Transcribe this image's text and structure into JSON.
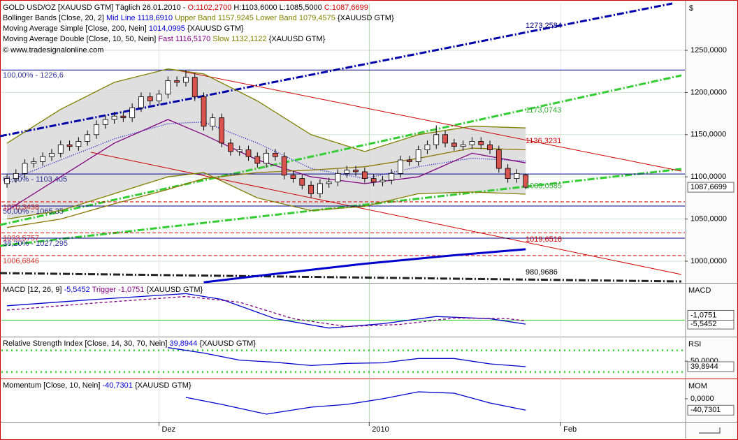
{
  "chart_data": [
    {
      "type": "candlestick",
      "title": "GOLD USD/OZ [XAUUSD GTM] Täglich 26.01.2010 -",
      "ohlc_labels": [
        "O:1102,2700",
        "H:1103,6000",
        "L:1085,5000",
        "C:1087,6699"
      ],
      "copyright": "© www.tradesignalonline.com",
      "currency": "$",
      "open": [
        1092,
        1098,
        1104,
        1116,
        1118,
        1124,
        1128,
        1138,
        1136,
        1142,
        1150,
        1162,
        1168,
        1172,
        1170,
        1182,
        1195,
        1190,
        1198,
        1214,
        1212,
        1218,
        1195,
        1160,
        1170,
        1140,
        1130,
        1132,
        1124,
        1116,
        1128,
        1124,
        1102,
        1098,
        1090,
        1080,
        1092,
        1094,
        1104,
        1108,
        1106,
        1098,
        1094,
        1096,
        1104,
        1120,
        1118,
        1132,
        1138,
        1150,
        1140,
        1136,
        1138,
        1142,
        1138,
        1132,
        1110,
        1098,
        1102.27
      ],
      "high": [
        1103,
        1109,
        1121,
        1123,
        1129,
        1133,
        1143,
        1143,
        1147,
        1155,
        1167,
        1173,
        1177,
        1177,
        1187,
        1200,
        1200,
        1203,
        1219,
        1219,
        1226,
        1223,
        1200,
        1175,
        1175,
        1145,
        1137,
        1137,
        1129,
        1133,
        1133,
        1129,
        1107,
        1103,
        1095,
        1097,
        1099,
        1109,
        1113,
        1113,
        1111,
        1103,
        1101,
        1109,
        1125,
        1125,
        1137,
        1143,
        1161,
        1155,
        1145,
        1143,
        1147,
        1147,
        1143,
        1137,
        1115,
        1109,
        1103.6
      ],
      "low": [
        1087,
        1093,
        1099,
        1111,
        1113,
        1119,
        1123,
        1131,
        1131,
        1137,
        1145,
        1157,
        1163,
        1165,
        1165,
        1177,
        1185,
        1185,
        1193,
        1207,
        1207,
        1190,
        1155,
        1155,
        1135,
        1125,
        1125,
        1119,
        1111,
        1111,
        1119,
        1097,
        1093,
        1085,
        1075,
        1075,
        1087,
        1089,
        1099,
        1101,
        1093,
        1089,
        1089,
        1091,
        1099,
        1113,
        1113,
        1127,
        1133,
        1135,
        1131,
        1131,
        1133,
        1133,
        1127,
        1105,
        1093,
        1093,
        1085.5
      ],
      "close": [
        1098,
        1104,
        1116,
        1118,
        1124,
        1128,
        1138,
        1136,
        1142,
        1150,
        1162,
        1168,
        1172,
        1170,
        1182,
        1195,
        1190,
        1198,
        1214,
        1212,
        1218,
        1195,
        1160,
        1170,
        1140,
        1130,
        1132,
        1124,
        1116,
        1128,
        1124,
        1102,
        1098,
        1090,
        1080,
        1092,
        1094,
        1104,
        1108,
        1106,
        1098,
        1094,
        1096,
        1104,
        1120,
        1118,
        1132,
        1138,
        1150,
        1140,
        1136,
        1138,
        1142,
        1138,
        1132,
        1110,
        1098,
        1104,
        1087.6699
      ],
      "last_label": "1087,6699",
      "xlim": [
        -0.625,
        75.8
      ],
      "xticks": [
        {
          "value": 17,
          "label": "Dez"
        },
        {
          "value": 40.5,
          "label": "2010"
        },
        {
          "value": 61.9,
          "label": "Feb"
        }
      ],
      "ylim": [
        974.3,
        1305.5
      ],
      "yticks": [
        {
          "value": 1000,
          "label": "1000,0000"
        },
        {
          "value": 1050,
          "label": "1050,0000"
        },
        {
          "value": 1100,
          "label": "1100,0000"
        },
        {
          "value": 1150,
          "label": "1150,0000"
        },
        {
          "value": 1200,
          "label": "1200,0000"
        },
        {
          "value": 1250,
          "label": "1250,0000"
        }
      ],
      "indicators": [
        {
          "label": "Bollinger Bands [Close, 20, 2]",
          "source": "{XAUUSD GTM}",
          "series": [
            {
              "name": "Mid Line",
              "value_label": "1118,6910",
              "color": "#0000cc",
              "style": "dotted",
              "x": [
                0,
                6,
                12,
                18,
                22,
                28,
                34,
                40,
                46,
                52,
                58
              ],
              "values": [
                1095,
                1120,
                1145,
                1163,
                1165,
                1140,
                1110,
                1098,
                1112,
                1122,
                1118.691
              ]
            },
            {
              "name": "Upper Band",
              "value_label": "1157,9245",
              "color": "#808000",
              "style": "solid",
              "x": [
                0,
                6,
                12,
                18,
                22,
                28,
                34,
                40,
                46,
                52,
                58
              ],
              "values": [
                1140,
                1180,
                1212,
                1228,
                1222,
                1190,
                1150,
                1130,
                1150,
                1160,
                1157.9245
              ]
            },
            {
              "name": "Lower Band",
              "value_label": "1079,4575",
              "color": "#808000",
              "style": "solid",
              "x": [
                0,
                6,
                12,
                18,
                22,
                28,
                34,
                40,
                46,
                52,
                58
              ],
              "values": [
                1050,
                1060,
                1080,
                1100,
                1105,
                1075,
                1060,
                1065,
                1080,
                1082,
                1079.4575
              ]
            }
          ]
        },
        {
          "label": "Moving Average Simple [Close, 200, Nein]",
          "source": "{XAUUSD GTM}",
          "series": [
            {
              "value_label": "1014,0995",
              "color": "#0000cc",
              "style": "thick",
              "x": [
                22,
                30,
                40,
                50,
                58
              ],
              "values": [
                975,
                985,
                997,
                1007,
                1014.0995
              ]
            }
          ]
        },
        {
          "label": "Moving Average Double [Close, 10, 50, Nein]",
          "source": "{XAUUSD GTM}",
          "series": [
            {
              "name": "Fast",
              "value_label": "1116,5170",
              "color": "#800080",
              "style": "solid",
              "x": [
                0,
                6,
                12,
                18,
                22,
                28,
                34,
                40,
                46,
                52,
                58
              ],
              "values": [
                1060,
                1100,
                1140,
                1168,
                1150,
                1120,
                1100,
                1092,
                1100,
                1128,
                1116.517
              ]
            },
            {
              "name": "Slow",
              "value_label": "1132,1122",
              "color": "#8b7500",
              "style": "solid",
              "x": [
                0,
                6,
                12,
                18,
                22,
                28,
                34,
                40,
                46,
                52,
                58
              ],
              "values": [
                1040,
                1050,
                1068,
                1085,
                1098,
                1105,
                1108,
                1112,
                1122,
                1134,
                1132.1122
              ]
            }
          ]
        }
      ],
      "levels": [
        {
          "value": 1226.6,
          "label": "100,00% - 1226,6",
          "color": "#000080",
          "dashed": false
        },
        {
          "value": 1103.405,
          "label": "61,80% - 1103,405",
          "color": "#000080",
          "dashed": false
        },
        {
          "value": 1065.35,
          "label": "50,00% - 1065,35",
          "color": "#000080",
          "dashed": false
        },
        {
          "value": 1027.295,
          "label": "38,20% - 1027,295",
          "color": "#000080",
          "dashed": false
        },
        {
          "value": 1070.3438,
          "label": "1070,3438",
          "color": "#cc0000",
          "dashed": true
        },
        {
          "value": 1033.5757,
          "label": "1033,5757",
          "color": "#cc0000",
          "dashed": true
        },
        {
          "value": 1006.6846,
          "label": "1006,6846",
          "color": "#cc0000",
          "dashed": true
        }
      ],
      "price_labels": [
        {
          "value": 1273.2584,
          "label": "1273,2584",
          "color": "#000080"
        },
        {
          "value": 1173.0743,
          "label": "1173,0743",
          "color": "#33aa33"
        },
        {
          "value": 1136.3231,
          "label": "1136,3231",
          "color": "#cc0000"
        },
        {
          "value": 1083.0585,
          "label": "1083,0585",
          "color": "#33aa33"
        },
        {
          "value": 1019.6516,
          "label": "1019,6516",
          "color": "#cc0000"
        },
        {
          "value": 980.9686,
          "label": "980,9686",
          "color": "#000000"
        }
      ]
    },
    {
      "type": "line",
      "title": "MACD [12, 26, 9]",
      "source": "{XAUUSD GTM}",
      "axis_label": "MACD",
      "ylim": [
        -23,
        50
      ],
      "levels": [
        0
      ],
      "series": [
        {
          "value_label": "-5,5452",
          "color": "#0000cc",
          "style": "solid",
          "x": [
            0,
            10,
            20,
            24,
            30,
            36,
            42,
            48,
            54,
            58
          ],
          "values": [
            20,
            29,
            37,
            29,
            2,
            -11,
            -5,
            5,
            2,
            -5.5452
          ]
        },
        {
          "name": "Trigger",
          "value_label": "-1,0751",
          "color": "#800080",
          "style": "dashed",
          "x": [
            0,
            10,
            20,
            26,
            32,
            38,
            44,
            50,
            56,
            58
          ],
          "values": [
            14,
            24,
            33,
            25,
            2,
            -9,
            -6,
            3,
            2,
            -1.0751
          ]
        }
      ]
    },
    {
      "type": "line",
      "title": "Relative Strength Index [Close, 14, 30, 70, Nein]",
      "source": "{XAUUSD GTM}",
      "axis_label": "RSI",
      "ylim": [
        18,
        92.7
      ],
      "yticks": [
        {
          "value": 50,
          "label": "50,0000"
        }
      ],
      "levels": [
        70,
        30
      ],
      "series": [
        {
          "value_label": "39,8944",
          "color": "#0000cc",
          "style": "solid",
          "x": [
            18,
            22,
            26,
            30,
            34,
            38,
            42,
            46,
            50,
            54,
            58
          ],
          "values": [
            75,
            65,
            52,
            48,
            42,
            46,
            47,
            55,
            55,
            45,
            39.8944
          ]
        }
      ]
    },
    {
      "type": "line",
      "title": "Momentum [Close, 10, Nein]",
      "source": "{XAUUSD GTM}",
      "axis_label": "MOM",
      "ylim": [
        -82.5,
        67.5
      ],
      "yticks": [
        {
          "value": 0,
          "label": "0,0000"
        }
      ],
      "series": [
        {
          "value_label": "-40,7301",
          "color": "#0000cc",
          "style": "solid",
          "x": [
            20,
            24,
            29,
            34,
            38,
            42,
            46,
            50,
            54,
            58
          ],
          "values": [
            5,
            -20,
            -55,
            -30,
            -20,
            0,
            25,
            20,
            -15,
            -40.7301
          ]
        }
      ]
    }
  ]
}
